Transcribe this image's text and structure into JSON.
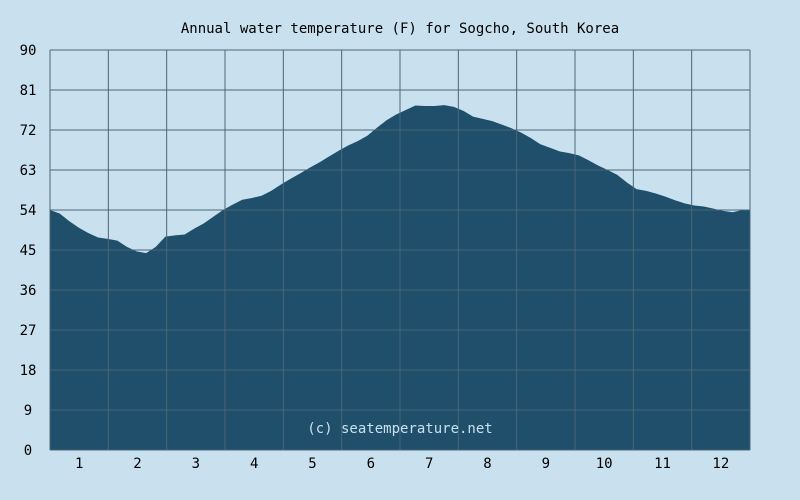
{
  "chart_data": {
    "type": "area",
    "title": "Annual water temperature (F) for Sogcho, South Korea",
    "xlabel": "",
    "ylabel": "",
    "watermark": "(c) seatemperature.net",
    "x_tick_labels": [
      "1",
      "2",
      "3",
      "4",
      "5",
      "6",
      "7",
      "8",
      "9",
      "10",
      "11",
      "12"
    ],
    "y_ticks": [
      0,
      9,
      18,
      27,
      36,
      45,
      54,
      63,
      72,
      81,
      90
    ],
    "xlim": [
      1,
      365
    ],
    "ylim": [
      0,
      90
    ],
    "grid": true,
    "colors": {
      "background": "#c9e1ee",
      "fill": "#1f4f6b",
      "grid": "#4a6678"
    },
    "series": [
      {
        "x": [
          1,
          6,
          11,
          16,
          21,
          26,
          31,
          36,
          41,
          46,
          51,
          56,
          61,
          66,
          71,
          76,
          81,
          86,
          91,
          96,
          101,
          106,
          111,
          116,
          121,
          126,
          131,
          136,
          141,
          146,
          151,
          156,
          161,
          166,
          171,
          176,
          181,
          186,
          191,
          196,
          201,
          206,
          211,
          216,
          221,
          226,
          231,
          236,
          241,
          246,
          251,
          256,
          261,
          266,
          271,
          276,
          281,
          286,
          291,
          296,
          301,
          306,
          311,
          316,
          321,
          326,
          331,
          336,
          341,
          346,
          351,
          356,
          361,
          365
        ],
        "values": [
          54.0,
          53.2,
          51.5,
          50.0,
          48.8,
          47.8,
          47.5,
          47.1,
          45.7,
          44.7,
          44.3,
          45.7,
          48.0,
          48.3,
          48.5,
          49.8,
          51.0,
          52.5,
          54.0,
          55.2,
          56.3,
          56.7,
          57.2,
          58.3,
          59.7,
          61.0,
          62.2,
          63.5,
          64.7,
          66.0,
          67.3,
          68.5,
          69.5,
          70.7,
          72.5,
          74.2,
          75.5,
          76.5,
          77.5,
          77.4,
          77.4,
          77.6,
          77.2,
          76.3,
          75.0,
          74.5,
          74.0,
          73.2,
          72.4,
          71.4,
          70.2,
          68.8,
          68.0,
          67.2,
          66.8,
          66.3,
          65.2,
          64.0,
          63.0,
          61.9,
          60.2,
          58.7,
          58.3,
          57.7,
          57.0,
          56.2,
          55.5,
          55.0,
          54.8,
          54.3,
          53.8,
          53.5,
          54.0,
          54.0
        ]
      }
    ]
  }
}
